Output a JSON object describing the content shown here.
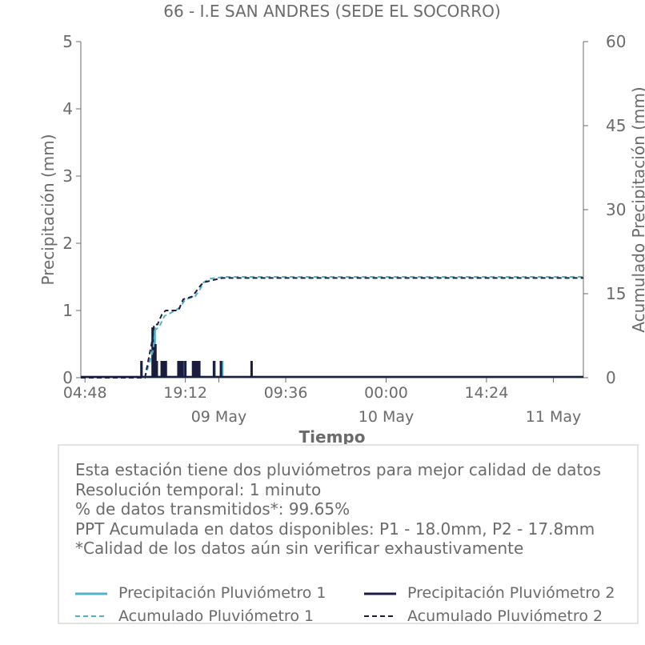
{
  "chart_data": {
    "type": "line",
    "title": "66 - I.E SAN ANDRES (SEDE EL SOCORRO)",
    "xlabel": "Tiempo",
    "ylabel": "Precipitación (mm)",
    "y2label": "Acumulado Precipitación (mm)",
    "ylim": [
      0,
      5
    ],
    "y2lim": [
      0,
      60
    ],
    "yticks": [
      "0",
      "1",
      "2",
      "3",
      "4",
      "5"
    ],
    "y2ticks": [
      "0",
      "15",
      "30",
      "45",
      "60"
    ],
    "xticks": [
      {
        "t": 0,
        "label": "04:48"
      },
      {
        "t": 14.4,
        "label": "19:12"
      },
      {
        "t": 28.8,
        "label": "09:36"
      },
      {
        "t": 43.2,
        "label": "00:00"
      },
      {
        "t": 57.6,
        "label": "14:24"
      }
    ],
    "date_labels": [
      {
        "t": 19.2,
        "label": "09 May"
      },
      {
        "t": 43.2,
        "label": "10 May"
      },
      {
        "t": 67.2,
        "label": "11 May"
      }
    ],
    "xlim": [
      -0.6,
      71.5
    ],
    "series": [
      {
        "name": "Precipitación Pluviómetro 1",
        "color": "#4fb3c8",
        "style": "solid",
        "axis": "left",
        "x": [
          8.1,
          9.8,
          10.0,
          10.1,
          11.2,
          11.4,
          13.4,
          13.6,
          13.9,
          14.3,
          15.6,
          15.9,
          16.3,
          18.6,
          19.7
        ],
        "values": [
          0.25,
          0.5,
          0.75,
          0.5,
          0.25,
          0.25,
          0.25,
          0.25,
          0.25,
          0.25,
          0.25,
          0.25,
          0.25,
          0.25,
          0.25
        ]
      },
      {
        "name": "Precipitación Pluviómetro 2",
        "color": "#1b1c3f",
        "style": "solid",
        "axis": "left",
        "x": [
          8.1,
          9.7,
          9.9,
          10.1,
          10.3,
          11.0,
          11.3,
          11.6,
          13.4,
          13.7,
          14.0,
          14.4,
          15.5,
          15.8,
          16.1,
          16.4,
          18.5,
          19.5,
          23.9
        ],
        "values": [
          0.25,
          0.75,
          0.5,
          0.5,
          0.25,
          0.25,
          0.25,
          0.25,
          0.25,
          0.25,
          0.25,
          0.25,
          0.25,
          0.25,
          0.25,
          0.25,
          0.25,
          0.25,
          0.25
        ]
      },
      {
        "name": "Acumulado Pluviómetro 1",
        "color": "#4fb3c8",
        "style": "dashed",
        "axis": "right",
        "x": [
          -0.6,
          8.6,
          9.8,
          10.0,
          10.6,
          11.4,
          12.2,
          13.6,
          14.4,
          15.8,
          16.6,
          17.0,
          17.4,
          18.0,
          20.0,
          24.0,
          30.0,
          71.5
        ],
        "values": [
          0,
          0,
          5.0,
          8.5,
          9.0,
          11.0,
          11.5,
          12.5,
          14.0,
          14.5,
          16.0,
          17.0,
          17.3,
          17.7,
          18.0,
          18.0,
          18.0,
          18.0
        ]
      },
      {
        "name": "Acumulado Pluviómetro 2",
        "color": "#1b1c3f",
        "style": "dashed",
        "axis": "right",
        "x": [
          -0.6,
          8.6,
          9.7,
          9.9,
          10.4,
          11.1,
          11.6,
          13.4,
          14.1,
          15.4,
          16.3,
          16.6,
          17.0,
          18.6,
          19.7,
          24.0,
          71.5
        ],
        "values": [
          0,
          0,
          7.0,
          9.5,
          9.5,
          11.5,
          12.0,
          12.0,
          14.0,
          14.5,
          16.0,
          16.5,
          17.0,
          17.5,
          17.8,
          17.8,
          17.8
        ]
      }
    ]
  },
  "info": {
    "lines": [
      "Esta estación tiene dos pluviómetros para mejor calidad de datos",
      "Resolución temporal: 1 minuto",
      "% de datos transmitidos*: 99.65%",
      "PPT Acumulada en datos disponibles: P1 - 18.0mm, P2 - 17.8mm",
      "*Calidad de los datos aún sin verificar exhaustivamente"
    ]
  },
  "legend": {
    "items": [
      {
        "label": "Precipitación Pluviómetro 1",
        "color": "#4fb3c8",
        "style": "solid"
      },
      {
        "label": "Precipitación Pluviómetro 2",
        "color": "#1b1c3f",
        "style": "solid"
      },
      {
        "label": "Acumulado Pluviómetro 1",
        "color": "#4fb3c8",
        "style": "dashed"
      },
      {
        "label": "Acumulado Pluviómetro 2",
        "color": "#1b1c3f",
        "style": "dashed"
      }
    ]
  },
  "colors": {
    "text": "#6b6b6b",
    "axis": "#6b6b6b",
    "p1": "#4fb3c8",
    "p2": "#1b1c3f"
  }
}
